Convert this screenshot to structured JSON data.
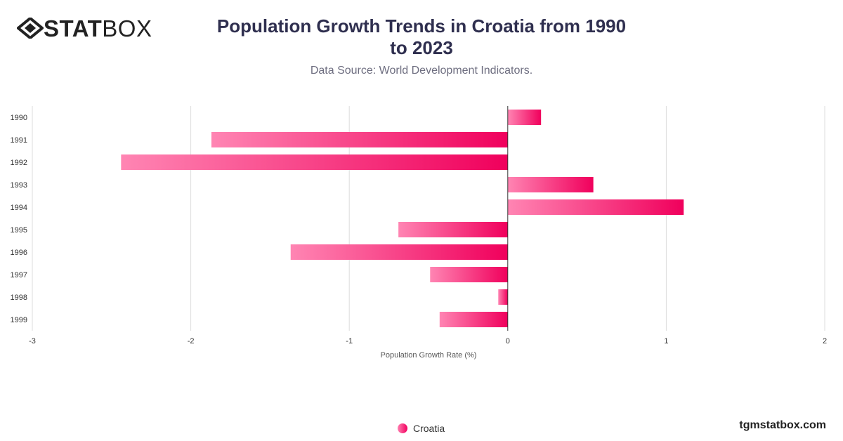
{
  "logo": {
    "bold": "STAT",
    "light": "BOX"
  },
  "title": "Population Growth Trends in Croatia from 1990 to 2023",
  "subtitle": "Data Source: World Development Indicators.",
  "watermark": "tgmstatbox.com",
  "colors": {
    "bar_light": "#ff85b3",
    "bar_dark": "#f0005c",
    "grid": "#dddddd",
    "axis": "#333333"
  },
  "chart_data": {
    "type": "bar",
    "orientation": "horizontal",
    "categories": [
      "1990",
      "1991",
      "1992",
      "1993",
      "1994",
      "1995",
      "1996",
      "1997",
      "1998",
      "1999"
    ],
    "series": [
      {
        "name": "Croatia",
        "values": [
          0.21,
          -1.87,
          -2.44,
          0.54,
          1.11,
          -0.69,
          -1.37,
          -0.49,
          -0.06,
          -0.43
        ]
      }
    ],
    "xlabel": "Population Growth Rate (%)",
    "ylabel": "",
    "xlim": [
      -3,
      2
    ],
    "xticks": [
      "-3",
      "-2",
      "-1",
      "0",
      "1",
      "2"
    ],
    "grid": true,
    "legend_position": "bottom"
  }
}
